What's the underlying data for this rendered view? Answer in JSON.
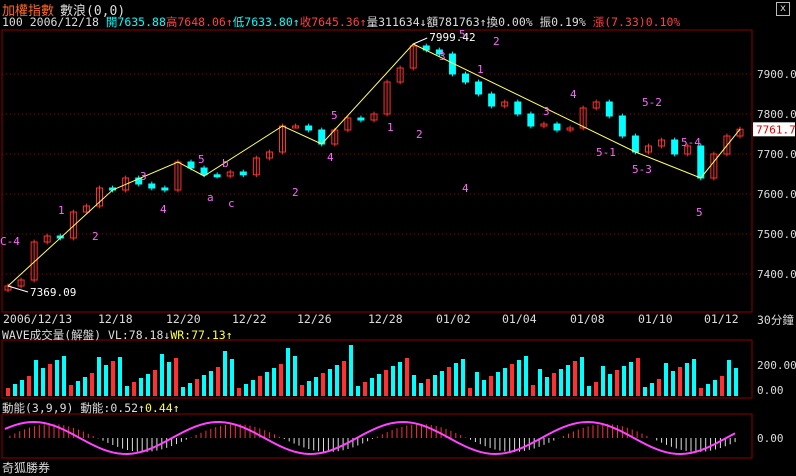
{
  "window": {
    "title": "加權指數",
    "subtitle": "數浪(0,0)",
    "close_glyph": "x"
  },
  "quote": {
    "code": "100",
    "date": "2006/12/18",
    "open_label": "開",
    "open": "7635.88",
    "high_label": "高",
    "high": "7648.06",
    "low_label": "低",
    "low": "7633.80",
    "close_label": "收",
    "close": "7645.36",
    "volume_label": "量",
    "volume": "311634",
    "amount_label": "額",
    "amount": "781763",
    "turnover_label": "換",
    "turnover": "0.00%",
    "amplitude_label": "振",
    "amplitude": "0.19%",
    "change_label": "漲",
    "change": "(7.33)0.10%"
  },
  "indicators": {
    "volume": {
      "name": "WAVE成交量(解盤)",
      "vl_label": "VL:",
      "vl": "78.18",
      "wr_label": "WR:",
      "wr": "77.13"
    },
    "momentum": {
      "name": "動能(3,9,9)",
      "value_label": "動能:",
      "value": "0.52",
      "signal": "0.44"
    }
  },
  "footer": {
    "brand": "奇狐勝券"
  },
  "colors": {
    "up": "#ff3030",
    "down": "#00ffff",
    "wave": "#ffff66",
    "label": "#ff66ff",
    "grid": "#8b0000"
  },
  "chart_data": {
    "type": "candlestick",
    "period_label": "30分鐘",
    "price_axis": {
      "min": 7300,
      "max": 8000,
      "ticks": [
        "7900.00",
        "7800.00",
        "7700.00",
        "7600.00",
        "7500.00",
        "7400.00"
      ],
      "current": "7761.7"
    },
    "x_labels": [
      "2006/12/13",
      "12/18",
      "12/20",
      "12/22",
      "12/26",
      "12/28",
      "01/02",
      "01/04",
      "01/08",
      "01/10",
      "01/12"
    ],
    "annotations": {
      "high": "7999.42",
      "low": "7369.09"
    },
    "close_path": [
      7370,
      7385,
      7480,
      7495,
      7490,
      7555,
      7570,
      7615,
      7610,
      7640,
      7625,
      7615,
      7610,
      7680,
      7665,
      7648,
      7645,
      7655,
      7648,
      7690,
      7705,
      7770,
      7770,
      7760,
      7725,
      7760,
      7790,
      7785,
      7800,
      7880,
      7915,
      7970,
      7960,
      7950,
      7900,
      7880,
      7850,
      7820,
      7830,
      7800,
      7770,
      7775,
      7760,
      7765,
      7815,
      7830,
      7795,
      7745,
      7705,
      7720,
      7735,
      7700,
      7720,
      7640,
      7700,
      7745,
      7762
    ],
    "wave_labels": [
      "C-4",
      "1",
      "2",
      "3",
      "4",
      "5",
      "a",
      "b",
      "c",
      "2",
      "5",
      "4",
      "1",
      "2",
      "3",
      "4",
      "5",
      "1",
      "2",
      "3",
      "4",
      "5-1",
      "5-2",
      "5-3",
      "5-4",
      "5"
    ],
    "volume_axis": {
      "ticks": [
        "200.00",
        "0.00"
      ]
    },
    "momentum_axis": {
      "ticks": [
        "0.00"
      ]
    }
  }
}
